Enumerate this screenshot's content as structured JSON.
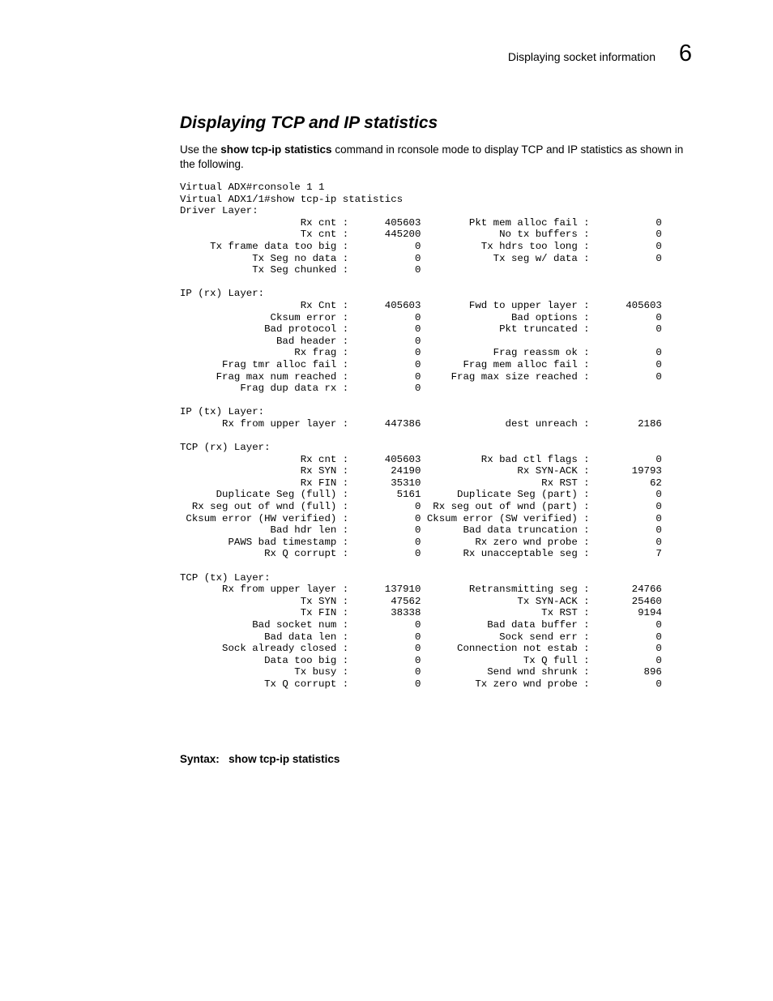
{
  "header": {
    "breadcrumb": "Displaying socket information",
    "chapter": "6"
  },
  "heading": "Displaying TCP and IP statistics",
  "intro": {
    "pre": "Use the ",
    "cmd": "show tcp-ip statistics",
    "post": " command in rconsole mode to display TCP and IP statistics as shown in the following."
  },
  "syntax": {
    "label": "Syntax:",
    "cmd": "show tcp-ip statistics"
  },
  "col_widths": {
    "label1": 28,
    "val1": 12,
    "label2": 28,
    "val2": 12
  },
  "terminal": {
    "preamble": [
      "Virtual ADX#rconsole 1 1",
      "Virtual ADX1/1#show tcp-ip statistics"
    ],
    "sections": [
      {
        "title": "Driver Layer:",
        "rows": [
          {
            "l1": "Rx cnt",
            "v1": "405603",
            "l2": "Pkt mem alloc fail",
            "v2": "0"
          },
          {
            "l1": "Tx cnt",
            "v1": "445200",
            "l2": "No tx buffers",
            "v2": "0"
          },
          {
            "l1": "Tx frame data too big",
            "v1": "0",
            "l2": "Tx hdrs too long",
            "v2": "0"
          },
          {
            "l1": "Tx Seg no data",
            "v1": "0",
            "l2": "Tx seg w/ data",
            "v2": "0"
          },
          {
            "l1": "Tx Seg chunked",
            "v1": "0"
          }
        ]
      },
      {
        "title": "IP (rx) Layer:",
        "rows": [
          {
            "l1": "Rx Cnt",
            "v1": "405603",
            "l2": "Fwd to upper layer",
            "v2": "405603"
          },
          {
            "l1": "Cksum error",
            "v1": "0",
            "l2": "Bad options",
            "v2": "0"
          },
          {
            "l1": "Bad protocol",
            "v1": "0",
            "l2": "Pkt truncated",
            "v2": "0"
          },
          {
            "l1": "Bad header",
            "v1": "0"
          },
          {
            "l1": "Rx frag",
            "v1": "0",
            "l2": "Frag reassm ok",
            "v2": "0"
          },
          {
            "l1": "Frag tmr alloc fail",
            "v1": "0",
            "l2": "Frag mem alloc fail",
            "v2": "0"
          },
          {
            "l1": "Frag max num reached",
            "v1": "0",
            "l2": "Frag max size reached",
            "v2": "0"
          },
          {
            "l1": "Frag dup data rx",
            "v1": "0"
          }
        ]
      },
      {
        "title": "IP (tx) Layer:",
        "rows": [
          {
            "l1": "Rx from upper layer",
            "v1": "447386",
            "l2": "dest unreach",
            "v2": "2186"
          }
        ]
      },
      {
        "title": "TCP (rx) Layer:",
        "rows": [
          {
            "l1": "Rx cnt",
            "v1": "405603",
            "l2": "Rx bad ctl flags",
            "v2": "0"
          },
          {
            "l1": "Rx SYN",
            "v1": "24190",
            "l2": "Rx SYN-ACK",
            "v2": "19793"
          },
          {
            "l1": "Rx FIN",
            "v1": "35310",
            "l2": "Rx RST",
            "v2": "62"
          },
          {
            "l1": "Duplicate Seg (full)",
            "v1": "5161",
            "l2": "Duplicate Seg (part)",
            "v2": "0"
          },
          {
            "l1": "Rx seg out of wnd (full)",
            "v1": "0",
            "l2": "Rx seg out of wnd (part)",
            "v2": "0"
          },
          {
            "l1": "Cksum error (HW verified)",
            "v1": "0",
            "l2": "Cksum error (SW verified)",
            "v2": "0"
          },
          {
            "l1": "Bad hdr len",
            "v1": "0",
            "l2": "Bad data truncation",
            "v2": "0"
          },
          {
            "l1": "PAWS bad timestamp",
            "v1": "0",
            "l2": "Rx zero wnd probe",
            "v2": "0"
          },
          {
            "l1": "Rx Q corrupt",
            "v1": "0",
            "l2": "Rx unacceptable seg",
            "v2": "7"
          }
        ]
      },
      {
        "title": "TCP (tx) Layer:",
        "rows": [
          {
            "l1": "Rx from upper layer",
            "v1": "137910",
            "l2": "Retransmitting seg",
            "v2": "24766"
          },
          {
            "l1": "Tx SYN",
            "v1": "47562",
            "l2": "Tx SYN-ACK",
            "v2": "25460"
          },
          {
            "l1": "Tx FIN",
            "v1": "38338",
            "l2": "Tx RST",
            "v2": "9194"
          },
          {
            "l1": "Bad socket num",
            "v1": "0",
            "l2": "Bad data buffer",
            "v2": "0"
          },
          {
            "l1": "Bad data len",
            "v1": "0",
            "l2": "Sock send err",
            "v2": "0"
          },
          {
            "l1": "Sock already closed",
            "v1": "0",
            "l2": "Connection not estab",
            "v2": "0"
          },
          {
            "l1": "Data too big",
            "v1": "0",
            "l2": "Tx Q full",
            "v2": "0"
          },
          {
            "l1": "Tx busy",
            "v1": "0",
            "l2": "Send wnd shrunk",
            "v2": "896"
          },
          {
            "l1": "Tx Q corrupt",
            "v1": "0",
            "l2": "Tx zero wnd probe",
            "v2": "0"
          }
        ]
      }
    ]
  }
}
